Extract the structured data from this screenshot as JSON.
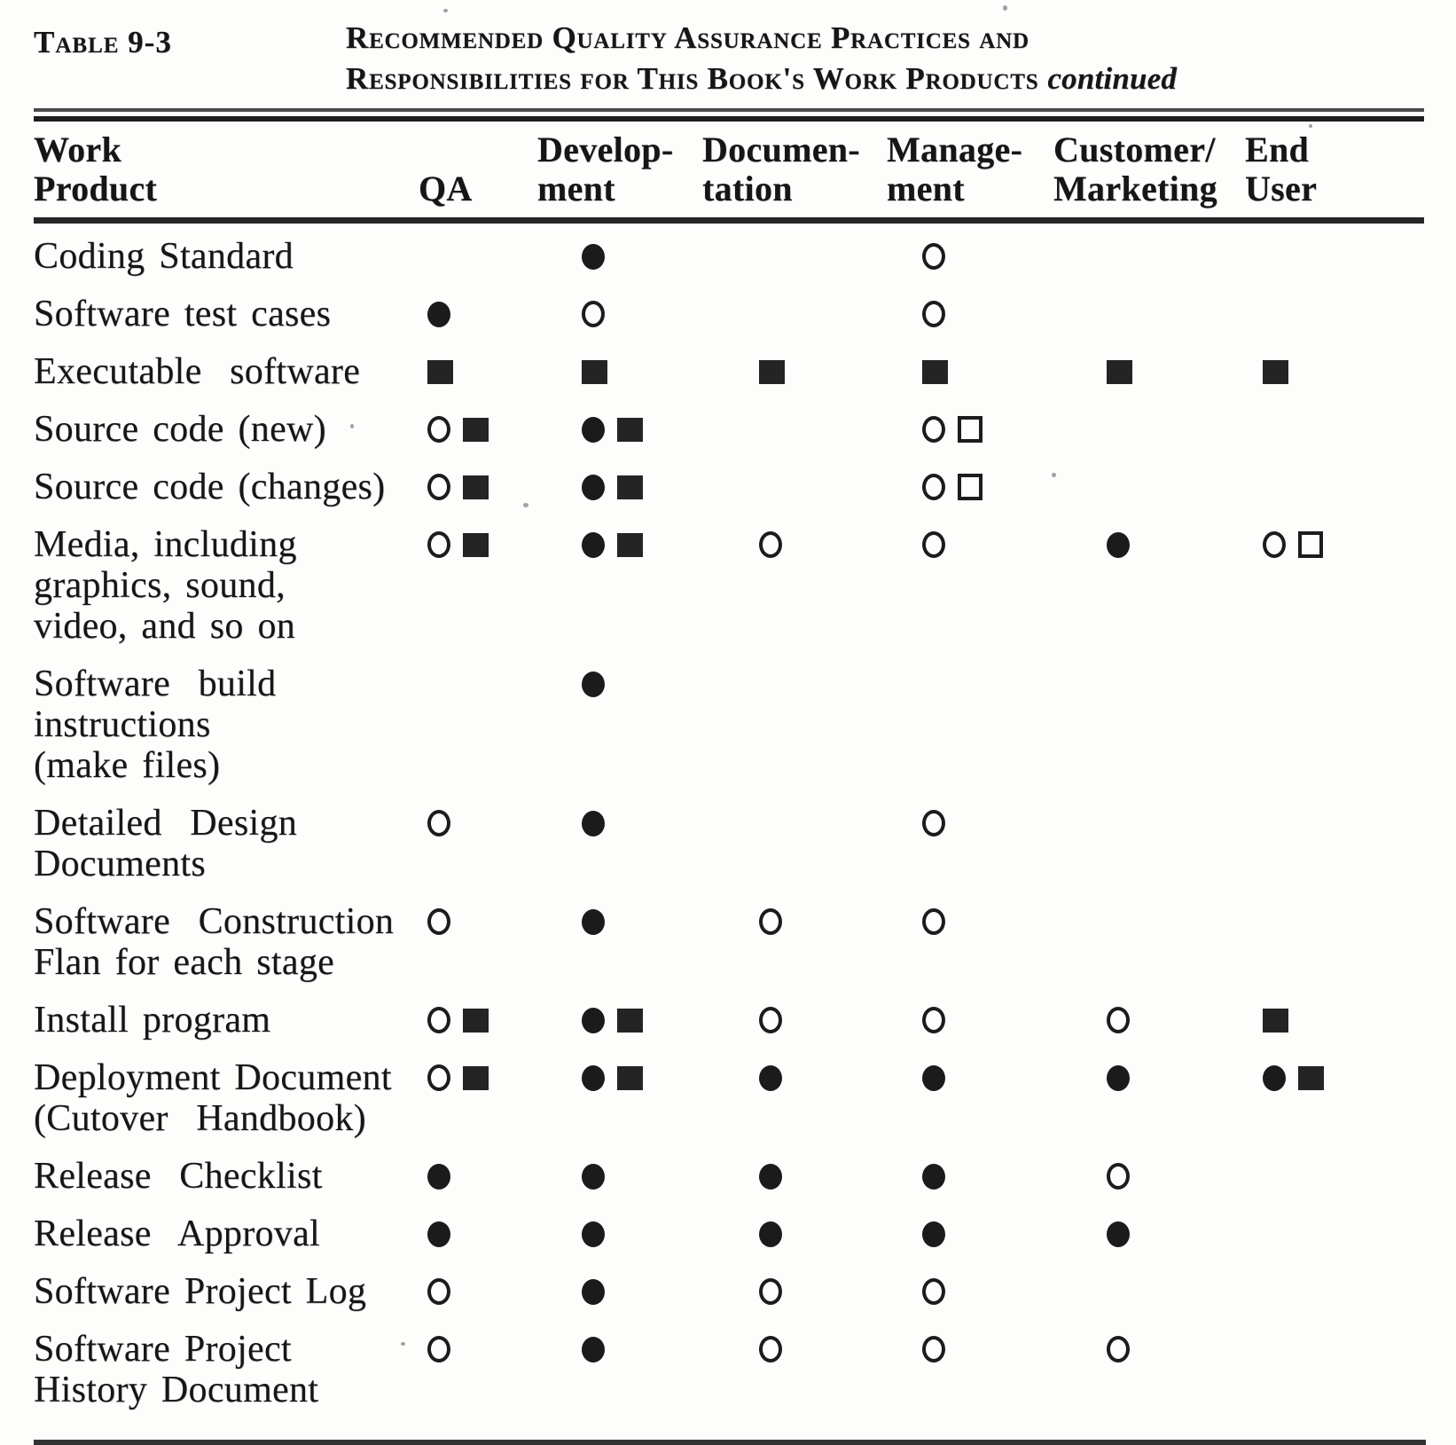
{
  "page": {
    "table_label": "Table 9-3",
    "title_line1": "Recommended Quality Assurance Practices and",
    "title_line2": "Responsibilities for This Book's Work Products",
    "continued": "continued"
  },
  "icons": {
    "filled-circle": "●",
    "open-circle": "○",
    "filled-square": "■",
    "open-square": "□"
  },
  "header": {
    "work_product": [
      "Work",
      "Product"
    ],
    "columns": [
      {
        "key": "qa",
        "lines": [
          "QA",
          ""
        ]
      },
      {
        "key": "development",
        "lines": [
          "Develop-",
          "ment"
        ]
      },
      {
        "key": "documentation",
        "lines": [
          "Documen-",
          "tation"
        ]
      },
      {
        "key": "management",
        "lines": [
          "Manage-",
          "ment"
        ]
      },
      {
        "key": "customer_marketing",
        "lines": [
          "Customer/",
          "Marketing"
        ]
      },
      {
        "key": "end_user",
        "lines": [
          "End",
          "User"
        ]
      }
    ]
  },
  "rows": [
    {
      "name_lines": [
        "Coding Standard"
      ],
      "qa": [],
      "development": [
        "filled-circle"
      ],
      "documentation": [],
      "management": [
        "open-circle"
      ],
      "customer_marketing": [],
      "end_user": []
    },
    {
      "name_lines": [
        "Software test cases"
      ],
      "qa": [
        "filled-circle"
      ],
      "development": [
        "open-circle"
      ],
      "documentation": [],
      "management": [
        "open-circle"
      ],
      "customer_marketing": [],
      "end_user": []
    },
    {
      "name_lines": [
        "Executable  software"
      ],
      "qa": [
        "filled-square"
      ],
      "development": [
        "filled-square"
      ],
      "documentation": [
        "filled-square"
      ],
      "management": [
        "filled-square"
      ],
      "customer_marketing": [
        "filled-square"
      ],
      "end_user": [
        "filled-square"
      ]
    },
    {
      "name_lines": [
        "Source code (new)"
      ],
      "qa": [
        "open-circle",
        "filled-square"
      ],
      "development": [
        "filled-circle",
        "filled-square"
      ],
      "documentation": [],
      "management": [
        "open-circle",
        "open-square"
      ],
      "customer_marketing": [],
      "end_user": []
    },
    {
      "name_lines": [
        "Source code (changes)"
      ],
      "qa": [
        "open-circle",
        "filled-square"
      ],
      "development": [
        "filled-circle",
        "filled-square"
      ],
      "documentation": [],
      "management": [
        "open-circle",
        "open-square"
      ],
      "customer_marketing": [],
      "end_user": []
    },
    {
      "name_lines": [
        "Media, including",
        "graphics, sound,",
        "video, and so on"
      ],
      "qa": [
        "open-circle",
        "filled-square"
      ],
      "development": [
        "filled-circle",
        "filled-square"
      ],
      "documentation": [
        "open-circle"
      ],
      "management": [
        "open-circle"
      ],
      "customer_marketing": [
        "filled-circle"
      ],
      "end_user": [
        "open-circle",
        "open-square"
      ]
    },
    {
      "name_lines": [
        "Software  build",
        "instructions",
        "(make files)"
      ],
      "qa": [],
      "development": [
        "filled-circle"
      ],
      "documentation": [],
      "management": [],
      "customer_marketing": [],
      "end_user": []
    },
    {
      "name_lines": [
        "Detailed  Design",
        "Documents"
      ],
      "qa": [
        "open-circle"
      ],
      "development": [
        "filled-circle"
      ],
      "documentation": [],
      "management": [
        "open-circle"
      ],
      "customer_marketing": [],
      "end_user": []
    },
    {
      "name_lines": [
        "Software  Construction",
        "Flan for each stage"
      ],
      "qa": [
        "open-circle"
      ],
      "development": [
        "filled-circle"
      ],
      "documentation": [
        "open-circle"
      ],
      "management": [
        "open-circle"
      ],
      "customer_marketing": [],
      "end_user": []
    },
    {
      "name_lines": [
        "Install program"
      ],
      "qa": [
        "open-circle",
        "filled-square"
      ],
      "development": [
        "filled-circle",
        "filled-square"
      ],
      "documentation": [
        "open-circle"
      ],
      "management": [
        "open-circle"
      ],
      "customer_marketing": [
        "open-circle"
      ],
      "end_user": [
        "filled-square"
      ]
    },
    {
      "name_lines": [
        "Deployment Document",
        "(Cutover  Handbook)"
      ],
      "qa": [
        "open-circle",
        "filled-square"
      ],
      "development": [
        "filled-circle",
        "filled-square"
      ],
      "documentation": [
        "filled-circle"
      ],
      "management": [
        "filled-circle"
      ],
      "customer_marketing": [
        "filled-circle"
      ],
      "end_user": [
        "filled-circle",
        "filled-square"
      ]
    },
    {
      "name_lines": [
        "Release  Checklist"
      ],
      "qa": [
        "filled-circle"
      ],
      "development": [
        "filled-circle"
      ],
      "documentation": [
        "filled-circle"
      ],
      "management": [
        "filled-circle"
      ],
      "customer_marketing": [
        "open-circle"
      ],
      "end_user": []
    },
    {
      "name_lines": [
        "Release  Approval"
      ],
      "qa": [
        "filled-circle"
      ],
      "development": [
        "filled-circle"
      ],
      "documentation": [
        "filled-circle"
      ],
      "management": [
        "filled-circle"
      ],
      "customer_marketing": [
        "filled-circle"
      ],
      "end_user": []
    },
    {
      "name_lines": [
        "Software Project Log"
      ],
      "qa": [
        "open-circle"
      ],
      "development": [
        "filled-circle"
      ],
      "documentation": [
        "open-circle"
      ],
      "management": [
        "open-circle"
      ],
      "customer_marketing": [],
      "end_user": []
    },
    {
      "name_lines": [
        "Software Project",
        "History Document"
      ],
      "qa": [
        "open-circle"
      ],
      "development": [
        "filled-circle"
      ],
      "documentation": [
        "open-circle"
      ],
      "management": [
        "open-circle"
      ],
      "customer_marketing": [
        "open-circle"
      ],
      "end_user": []
    }
  ]
}
